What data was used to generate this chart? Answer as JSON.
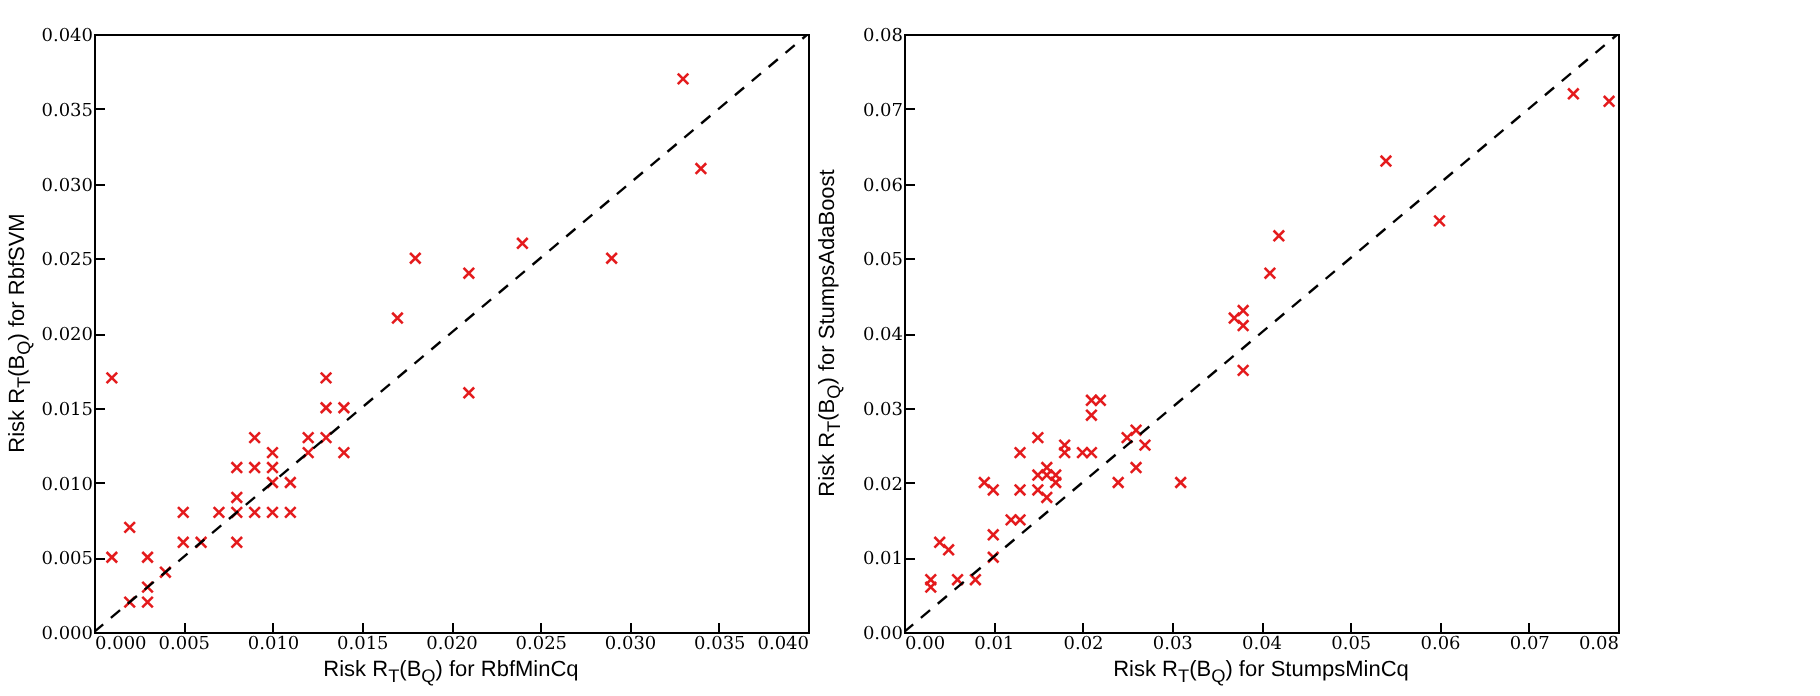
{
  "chart_data": [
    {
      "type": "scatter",
      "xlabel": "Risk R$_{T}$(B$_{Q}$) for RbfMinCq",
      "ylabel": "Risk R$_{T}$(B$_{Q}$) for RbfSVM",
      "marker": "cross",
      "grid": false,
      "xlim": [
        0,
        0.04
      ],
      "ylim": [
        0,
        0.04
      ],
      "xticks": [
        {
          "value": 0,
          "label": "0.000"
        },
        {
          "value": 0.005,
          "label": "0.005"
        },
        {
          "value": 0.01,
          "label": "0.010"
        },
        {
          "value": 0.015,
          "label": "0.015"
        },
        {
          "value": 0.02,
          "label": "0.020"
        },
        {
          "value": 0.025,
          "label": "0.025"
        },
        {
          "value": 0.03,
          "label": "0.030"
        },
        {
          "value": 0.035,
          "label": "0.035"
        },
        {
          "value": 0.04,
          "label": "0.040"
        }
      ],
      "yticks": [
        {
          "value": 0,
          "label": "0.000"
        },
        {
          "value": 0.005,
          "label": "0.005"
        },
        {
          "value": 0.01,
          "label": "0.010"
        },
        {
          "value": 0.015,
          "label": "0.015"
        },
        {
          "value": 0.02,
          "label": "0.020"
        },
        {
          "value": 0.025,
          "label": "0.025"
        },
        {
          "value": 0.03,
          "label": "0.030"
        },
        {
          "value": 0.035,
          "label": "0.035"
        },
        {
          "value": 0.04,
          "label": "0.040"
        }
      ],
      "series": [
        {
          "color": "#e41a1c",
          "x": [
            0.001,
            0.001,
            0.002,
            0.002,
            0.003,
            0.003,
            0.003,
            0.004,
            0.005,
            0.005,
            0.006,
            0.007,
            0.008,
            0.008,
            0.008,
            0.008,
            0.009,
            0.009,
            0.009,
            0.01,
            0.01,
            0.01,
            0.01,
            0.011,
            0.011,
            0.012,
            0.012,
            0.013,
            0.013,
            0.013,
            0.014,
            0.014,
            0.017,
            0.018,
            0.021,
            0.021,
            0.024,
            0.029,
            0.033,
            0.034
          ],
          "values": [
            0.017,
            0.005,
            0.007,
            0.002,
            0.005,
            0.003,
            0.002,
            0.004,
            0.008,
            0.006,
            0.006,
            0.008,
            0.011,
            0.009,
            0.008,
            0.006,
            0.013,
            0.011,
            0.008,
            0.012,
            0.011,
            0.01,
            0.008,
            0.01,
            0.008,
            0.013,
            0.012,
            0.017,
            0.015,
            0.013,
            0.015,
            0.012,
            0.021,
            0.025,
            0.024,
            0.016,
            0.026,
            0.025,
            0.037,
            0.031
          ]
        },
        {
          "type": "line",
          "color": "#000000",
          "line_style": "dashed",
          "marker": "none",
          "x": [
            0,
            0.04
          ],
          "values": [
            0,
            0.04
          ]
        }
      ]
    },
    {
      "type": "scatter",
      "xlabel": "Risk R$_{T}$(B$_{Q}$) for StumpsMinCq",
      "ylabel": "Risk R$_{T}$(B$_{Q}$) for StumpsAdaBoost",
      "marker": "cross",
      "grid": false,
      "xlim": [
        0,
        0.08
      ],
      "ylim": [
        0,
        0.08
      ],
      "xticks": [
        {
          "value": 0,
          "label": "0.00"
        },
        {
          "value": 0.01,
          "label": "0.01"
        },
        {
          "value": 0.02,
          "label": "0.02"
        },
        {
          "value": 0.03,
          "label": "0.03"
        },
        {
          "value": 0.04,
          "label": "0.04"
        },
        {
          "value": 0.05,
          "label": "0.05"
        },
        {
          "value": 0.06,
          "label": "0.06"
        },
        {
          "value": 0.07,
          "label": "0.07"
        },
        {
          "value": 0.08,
          "label": "0.08"
        }
      ],
      "yticks": [
        {
          "value": 0,
          "label": "0.00"
        },
        {
          "value": 0.01,
          "label": "0.01"
        },
        {
          "value": 0.02,
          "label": "0.02"
        },
        {
          "value": 0.03,
          "label": "0.03"
        },
        {
          "value": 0.04,
          "label": "0.04"
        },
        {
          "value": 0.05,
          "label": "0.05"
        },
        {
          "value": 0.06,
          "label": "0.06"
        },
        {
          "value": 0.07,
          "label": "0.07"
        },
        {
          "value": 0.08,
          "label": "0.08"
        }
      ],
      "series": [
        {
          "color": "#e41a1c",
          "x": [
            0.003,
            0.003,
            0.004,
            0.005,
            0.006,
            0.008,
            0.009,
            0.01,
            0.01,
            0.01,
            0.012,
            0.013,
            0.013,
            0.013,
            0.015,
            0.015,
            0.015,
            0.016,
            0.016,
            0.016,
            0.017,
            0.017,
            0.018,
            0.018,
            0.02,
            0.021,
            0.021,
            0.021,
            0.022,
            0.024,
            0.025,
            0.026,
            0.026,
            0.027,
            0.031,
            0.037,
            0.038,
            0.038,
            0.038,
            0.041,
            0.042,
            0.054,
            0.06,
            0.075,
            0.079
          ],
          "values": [
            0.007,
            0.006,
            0.012,
            0.011,
            0.007,
            0.007,
            0.02,
            0.019,
            0.013,
            0.01,
            0.015,
            0.015,
            0.024,
            0.019,
            0.026,
            0.021,
            0.019,
            0.022,
            0.021,
            0.018,
            0.021,
            0.02,
            0.025,
            0.024,
            0.024,
            0.031,
            0.029,
            0.024,
            0.031,
            0.02,
            0.026,
            0.027,
            0.022,
            0.025,
            0.02,
            0.042,
            0.043,
            0.041,
            0.035,
            0.048,
            0.053,
            0.063,
            0.055,
            0.072,
            0.071
          ]
        },
        {
          "type": "line",
          "color": "#000000",
          "line_style": "dashed",
          "marker": "none",
          "x": [
            0,
            0.08
          ],
          "values": [
            0,
            0.08
          ]
        }
      ]
    }
  ]
}
